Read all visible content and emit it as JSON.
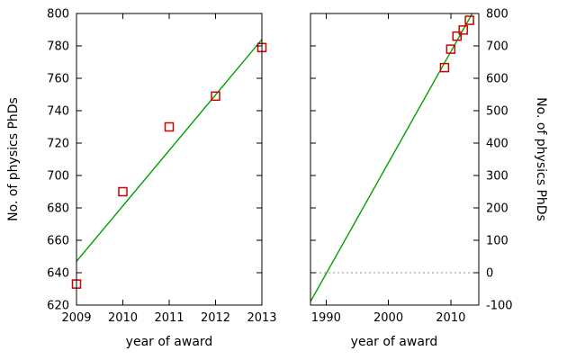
{
  "figure": {
    "background": "#ffffff",
    "axis_color": "#000000",
    "text_color": "#000000",
    "point_color": "#cc0000",
    "fit_line_color": "#00a000",
    "zero_line_color": "#8f8fa8"
  },
  "chart_data": [
    {
      "type": "scatter",
      "panel": "left",
      "title": "",
      "xlabel": "year of award",
      "ylabel": "No. of physics PhDs",
      "x": [
        2009,
        2010,
        2011,
        2012,
        2013
      ],
      "y": [
        633,
        690,
        730,
        749,
        779
      ],
      "fit_line": {
        "x1": 2009,
        "y1": 647,
        "x2": 2013,
        "y2": 784
      },
      "xlim": [
        2009,
        2013
      ],
      "ylim": [
        620,
        800
      ],
      "xticks": [
        2009,
        2010,
        2011,
        2012,
        2013
      ],
      "yticks": [
        620,
        640,
        660,
        680,
        700,
        720,
        740,
        760,
        780,
        800
      ],
      "y_label_side": "left",
      "grid": false
    },
    {
      "type": "scatter",
      "panel": "right",
      "title": "",
      "xlabel": "year of award",
      "ylabel": "No. of physics PhDs",
      "x": [
        2009,
        2010,
        2011,
        2012,
        2013
      ],
      "y": [
        633,
        690,
        730,
        749,
        779
      ],
      "fit_line": {
        "x1": 1987.5,
        "y1": -89,
        "x2": 2014.5,
        "y2": 836
      },
      "zero_line": 0,
      "xlim": [
        1987.5,
        2014.5
      ],
      "ylim": [
        -100,
        800
      ],
      "xticks": [
        1990,
        2000,
        2010
      ],
      "yticks": [
        -100,
        0,
        100,
        200,
        300,
        400,
        500,
        600,
        700,
        800
      ],
      "y_label_side": "right",
      "grid": false
    }
  ]
}
